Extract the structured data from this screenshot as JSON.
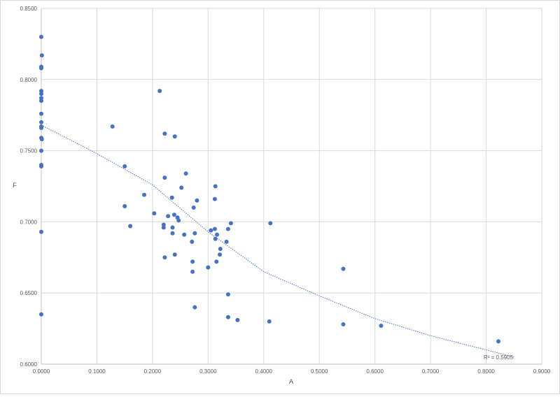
{
  "chart_data": {
    "type": "scatter",
    "title": "",
    "xlabel": "A",
    "ylabel": "F",
    "xlim": [
      0,
      0.9
    ],
    "ylim": [
      0.6,
      0.85
    ],
    "grid": true,
    "x_ticks": [
      "0.0000",
      "0.1000",
      "0.2000",
      "0.3000",
      "0.4000",
      "0.5000",
      "0.6000",
      "0.7000",
      "0.8000",
      "0.9000"
    ],
    "y_ticks": [
      "0.6000",
      "0.6500",
      "0.7000",
      "0.7500",
      "0.8000",
      "0.8500"
    ],
    "point_color": "#4472c4",
    "trendline": {
      "type": "polynomial-2",
      "color": "#4472c4",
      "style": "dotted",
      "points": [
        [
          0,
          0.768
        ],
        [
          0.1,
          0.748
        ],
        [
          0.2,
          0.726
        ],
        [
          0.3,
          0.693
        ],
        [
          0.4,
          0.665
        ],
        [
          0.5,
          0.648
        ],
        [
          0.6,
          0.632
        ],
        [
          0.7,
          0.62
        ],
        [
          0.85,
          0.605
        ]
      ],
      "r2_label": "R² = 0.5905"
    },
    "points": [
      [
        0.0,
        0.83
      ],
      [
        0.001,
        0.817
      ],
      [
        0.0,
        0.809
      ],
      [
        0.0,
        0.808
      ],
      [
        0.0,
        0.792
      ],
      [
        0.0,
        0.79
      ],
      [
        0.0,
        0.787
      ],
      [
        0.0,
        0.785
      ],
      [
        0.0,
        0.776
      ],
      [
        0.0,
        0.77
      ],
      [
        0.0,
        0.767
      ],
      [
        0.0,
        0.766
      ],
      [
        0.0,
        0.759
      ],
      [
        0.001,
        0.758
      ],
      [
        0.0,
        0.75
      ],
      [
        0.0,
        0.74
      ],
      [
        0.0,
        0.739
      ],
      [
        0.0,
        0.693
      ],
      [
        0.0,
        0.635
      ],
      [
        0.128,
        0.767
      ],
      [
        0.15,
        0.739
      ],
      [
        0.15,
        0.711
      ],
      [
        0.16,
        0.697
      ],
      [
        0.185,
        0.719
      ],
      [
        0.203,
        0.706
      ],
      [
        0.213,
        0.792
      ],
      [
        0.22,
        0.698
      ],
      [
        0.22,
        0.696
      ],
      [
        0.222,
        0.762
      ],
      [
        0.222,
        0.731
      ],
      [
        0.222,
        0.675
      ],
      [
        0.228,
        0.704
      ],
      [
        0.235,
        0.717
      ],
      [
        0.236,
        0.696
      ],
      [
        0.236,
        0.692
      ],
      [
        0.239,
        0.705
      ],
      [
        0.24,
        0.76
      ],
      [
        0.24,
        0.677
      ],
      [
        0.245,
        0.703
      ],
      [
        0.247,
        0.701
      ],
      [
        0.252,
        0.724
      ],
      [
        0.257,
        0.691
      ],
      [
        0.26,
        0.734
      ],
      [
        0.271,
        0.686
      ],
      [
        0.272,
        0.672
      ],
      [
        0.272,
        0.665
      ],
      [
        0.274,
        0.71
      ],
      [
        0.276,
        0.692
      ],
      [
        0.276,
        0.64
      ],
      [
        0.28,
        0.715
      ],
      [
        0.3,
        0.668
      ],
      [
        0.305,
        0.694
      ],
      [
        0.312,
        0.716
      ],
      [
        0.312,
        0.695
      ],
      [
        0.313,
        0.688
      ],
      [
        0.313,
        0.725
      ],
      [
        0.315,
        0.672
      ],
      [
        0.316,
        0.691
      ],
      [
        0.321,
        0.677
      ],
      [
        0.322,
        0.681
      ],
      [
        0.333,
        0.686
      ],
      [
        0.336,
        0.695
      ],
      [
        0.336,
        0.649
      ],
      [
        0.336,
        0.633
      ],
      [
        0.341,
        0.699
      ],
      [
        0.353,
        0.631
      ],
      [
        0.41,
        0.63
      ],
      [
        0.412,
        0.699
      ],
      [
        0.543,
        0.667
      ],
      [
        0.543,
        0.628
      ],
      [
        0.611,
        0.627
      ],
      [
        0.822,
        0.616
      ]
    ]
  }
}
